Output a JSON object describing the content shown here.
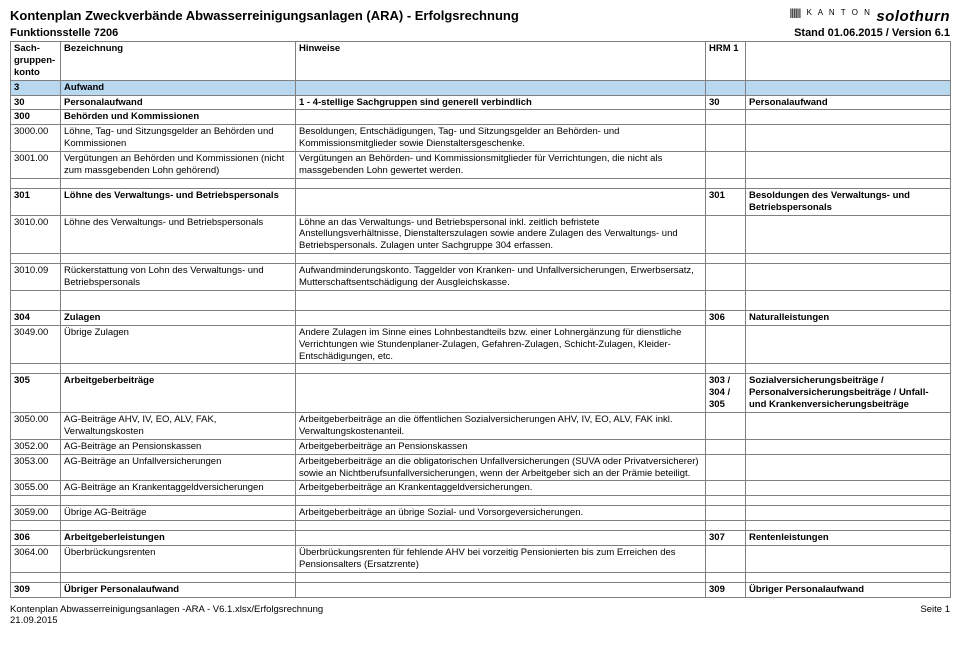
{
  "header": {
    "title": "Kontenplan Zweckverbände Abwasserreinigungsanlagen (ARA) - Erfolgsrechnung",
    "funktionsstelle": "Funktionsstelle 7206",
    "stand": "Stand 01.06.2015 / Version 6.1",
    "logo_kanton": "K A N T O N",
    "logo_name": "solothurn"
  },
  "columns": {
    "konto": "Sach-gruppen-konto",
    "bezeichnung": "Bezeichnung",
    "hinweise": "Hinweise",
    "hrm1": "HRM 1",
    "hrmtext": ""
  },
  "rows": [
    {
      "type": "blue",
      "konto": "3",
      "bez": "Aufwand",
      "hinw": "",
      "hrm1": "",
      "hrmtext": ""
    },
    {
      "type": "bold",
      "konto": "30",
      "bez": "Personalaufwand",
      "hinw": "1 - 4-stellige Sachgruppen sind generell verbindlich",
      "hrm1": "30",
      "hrmtext": "Personalaufwand"
    },
    {
      "type": "bold",
      "konto": "300",
      "bez": "Behörden und Kommissionen",
      "hinw": "",
      "hrm1": "",
      "hrmtext": ""
    },
    {
      "type": "",
      "konto": "3000.00",
      "bez": "Löhne, Tag- und Sitzungsgelder an Behörden und Kommissionen",
      "hinw": "Besoldungen, Entschädigungen, Tag- und Sitzungsgelder an Behörden- und Kommissionsmitglieder sowie Dienstaltersgeschenke.",
      "hrm1": "",
      "hrmtext": ""
    },
    {
      "type": "",
      "konto": "3001.00",
      "bez": "Vergütungen an Behörden und Kommissionen (nicht zum massgebenden Lohn gehörend)",
      "hinw": "Vergütungen an Behörden- und Kommissionsmitglieder für Verrichtungen, die nicht als massgebenden Lohn gewertet werden.",
      "hrm1": "",
      "hrmtext": ""
    },
    {
      "type": "gap"
    },
    {
      "type": "bold",
      "konto": "301",
      "bez": "Löhne des Verwaltungs- und Betriebspersonals",
      "hinw": "",
      "hrm1": "301",
      "hrmtext": "Besoldungen des Verwaltungs- und Betriebspersonals"
    },
    {
      "type": "",
      "konto": "3010.00",
      "bez": "Löhne des Verwaltungs- und Betriebspersonals",
      "hinw": "Löhne an das Verwaltungs- und Betriebspersonal inkl. zeitlich befristete Anstellungsverhältnisse, Dienstalterszulagen sowie andere Zulagen des Verwaltungs- und Betriebspersonals. Zulagen unter Sachgruppe 304 erfassen.",
      "hrm1": "",
      "hrmtext": ""
    },
    {
      "type": "gap"
    },
    {
      "type": "",
      "konto": "3010.09",
      "bez": "Rückerstattung von Lohn des Verwaltungs- und Betriebspersonals",
      "hinw": "Aufwandminderungskonto. Taggelder von Kranken- und Unfallversicherungen, Erwerbsersatz, Mutterschaftsentschädigung der Ausgleichskasse.",
      "hrm1": "",
      "hrmtext": ""
    },
    {
      "type": "gap"
    },
    {
      "type": "gap"
    },
    {
      "type": "bold",
      "konto": "304",
      "bez": "Zulagen",
      "hinw": "",
      "hrm1": "306",
      "hrmtext": "Naturalleistungen"
    },
    {
      "type": "",
      "konto": "3049.00",
      "bez": "Übrige Zulagen",
      "hinw": "Andere Zulagen im Sinne eines Lohnbestandteils bzw. einer Lohnergänzung für dienstliche Verrichtungen wie Stundenplaner-Zulagen, Gefahren-Zulagen, Schicht-Zulagen, Kleider-Entschädigungen, etc.",
      "hrm1": "",
      "hrmtext": ""
    },
    {
      "type": "gap"
    },
    {
      "type": "bold",
      "konto": "305",
      "bez": "Arbeitgeberbeiträge",
      "hinw": "",
      "hrm1": "303 / 304 / 305",
      "hrmtext": "Sozialversicherungsbeiträge / Personalversicherungsbeiträge / Unfall- und Krankenversicherungsbeiträge"
    },
    {
      "type": "",
      "konto": "3050.00",
      "bez": "AG-Beiträge AHV, IV, EO, ALV, FAK, Verwaltungskosten",
      "hinw": "Arbeitgeberbeiträge an die öffentlichen Sozialversicherungen AHV, IV, EO, ALV, FAK inkl. Verwaltungskostenanteil.",
      "hrm1": "",
      "hrmtext": ""
    },
    {
      "type": "",
      "konto": "3052.00",
      "bez": "AG-Beiträge an Pensionskassen",
      "hinw": "Arbeitgeberbeiträge an Pensionskassen",
      "hrm1": "",
      "hrmtext": ""
    },
    {
      "type": "",
      "konto": "3053.00",
      "bez": "AG-Beiträge an Unfallversicherungen",
      "hinw": "Arbeitgeberbeiträge an die obligatorischen Unfallversicherungen (SUVA oder Privatversicherer) sowie an Nichtberufsunfallversicherungen, wenn der Arbeitgeber sich an der Prämie beteiligt.",
      "hrm1": "",
      "hrmtext": ""
    },
    {
      "type": "",
      "konto": "3055.00",
      "bez": "AG-Beiträge an Krankentaggeldversicherungen",
      "hinw": "Arbeitgeberbeiträge an Krankentaggeldversicherungen.",
      "hrm1": "",
      "hrmtext": ""
    },
    {
      "type": "gap"
    },
    {
      "type": "",
      "konto": "3059.00",
      "bez": "Übrige AG-Beiträge",
      "hinw": "Arbeitgeberbeiträge an übrige Sozial- und Vorsorgeversicherungen.",
      "hrm1": "",
      "hrmtext": ""
    },
    {
      "type": "gap"
    },
    {
      "type": "bold",
      "konto": "306",
      "bez": "Arbeitgeberleistungen",
      "hinw": "",
      "hrm1": "307",
      "hrmtext": "Rentenleistungen"
    },
    {
      "type": "",
      "konto": "3064.00",
      "bez": "Überbrückungsrenten",
      "hinw": "Überbrückungsrenten für fehlende AHV bei vorzeitig Pensionierten bis zum Erreichen des Pensionsalters (Ersatzrente)",
      "hrm1": "",
      "hrmtext": ""
    },
    {
      "type": "gap"
    },
    {
      "type": "bold",
      "konto": "309",
      "bez": "Übriger Personalaufwand",
      "hinw": "",
      "hrm1": "309",
      "hrmtext": "Übriger Personalaufwand"
    }
  ],
  "footer": {
    "left1": "Kontenplan Abwasserreinigungsanlagen -ARA - V6.1.xlsx/Erfolgsrechnung",
    "left2": "21.09.2015",
    "right": "Seite 1"
  }
}
